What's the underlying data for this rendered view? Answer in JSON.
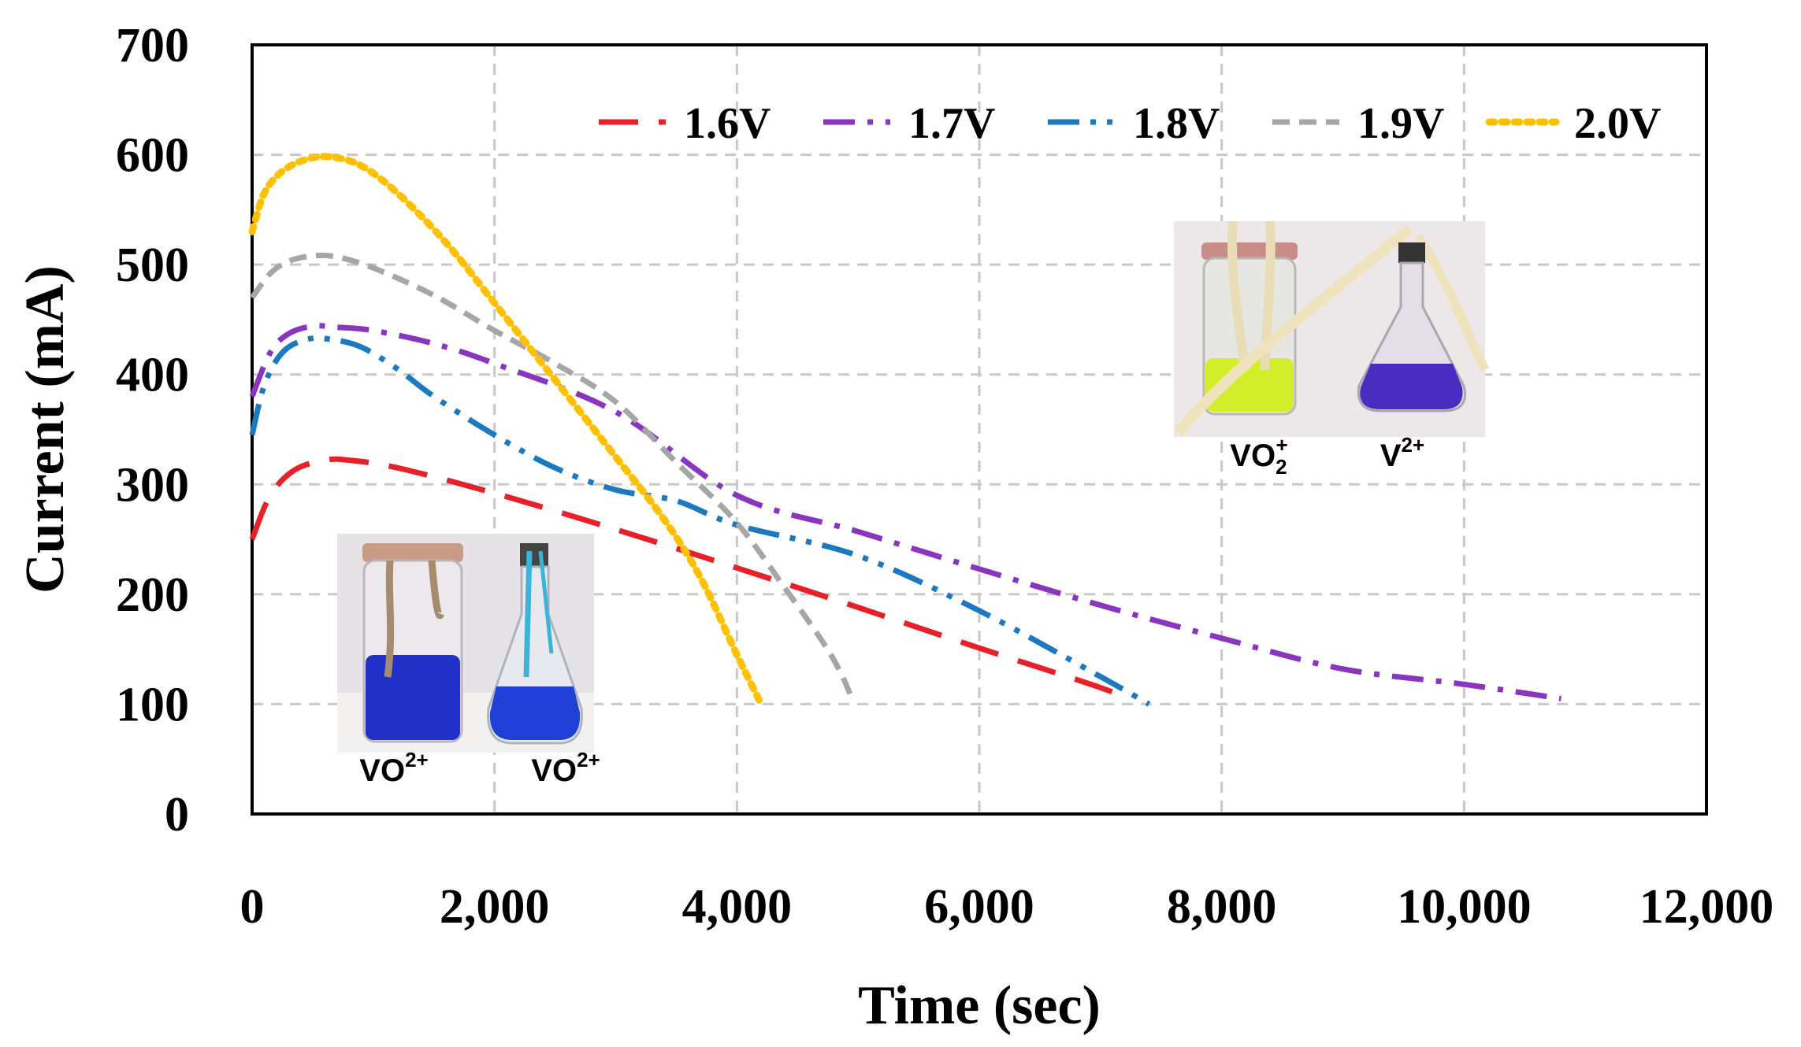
{
  "chart_data": {
    "type": "line",
    "title": "",
    "xlabel": "Time (sec)",
    "ylabel": "Current (mA)",
    "xlim": [
      0,
      12000
    ],
    "ylim": [
      0,
      700
    ],
    "x_ticks": [
      0,
      2000,
      4000,
      6000,
      8000,
      10000,
      12000
    ],
    "x_tick_labels": [
      "0",
      "2,000",
      "4,000",
      "6,000",
      "8,000",
      "10,000",
      "12,000"
    ],
    "y_ticks": [
      0,
      100,
      200,
      300,
      400,
      500,
      600,
      700
    ],
    "y_tick_labels": [
      "0",
      "100",
      "200",
      "300",
      "400",
      "500",
      "600",
      "700"
    ],
    "grid": true,
    "legend_position": "top-right",
    "series": [
      {
        "name": "1.6V",
        "color": "#e8202a",
        "dash": "long-dash",
        "x": [
          0,
          150,
          350,
          600,
          800,
          1200,
          2000,
          3000,
          4000,
          5000,
          6000,
          7000,
          7200
        ],
        "y": [
          250,
          290,
          313,
          322,
          322,
          315,
          292,
          259,
          224,
          188,
          151,
          115,
          105
        ]
      },
      {
        "name": "1.7V",
        "color": "#8a35c0",
        "dash": "dash-dot",
        "x": [
          0,
          150,
          300,
          500,
          700,
          1000,
          1500,
          2000,
          3000,
          4000,
          5000,
          6000,
          7000,
          8000,
          9000,
          10000,
          10800
        ],
        "y": [
          380,
          420,
          437,
          444,
          443,
          440,
          428,
          410,
          366,
          290,
          257,
          223,
          190,
          160,
          132,
          118,
          105
        ]
      },
      {
        "name": "1.8V",
        "color": "#1a79c0",
        "dash": "dash-dot-dot",
        "x": [
          0,
          100,
          250,
          450,
          650,
          900,
          1200,
          1500,
          2000,
          2500,
          3000,
          3500,
          4000,
          5000,
          6000,
          7000,
          7400
        ],
        "y": [
          345,
          390,
          420,
          432,
          432,
          425,
          405,
          380,
          345,
          315,
          295,
          285,
          263,
          235,
          185,
          125,
          100
        ]
      },
      {
        "name": "1.9V",
        "color": "#a6a6a6",
        "dash": "short-dash",
        "x": [
          0,
          150,
          300,
          500,
          700,
          1000,
          1500,
          2000,
          2500,
          3000,
          3500,
          4000,
          4400,
          4700,
          4850,
          4950
        ],
        "y": [
          470,
          492,
          503,
          508,
          507,
          497,
          472,
          440,
          410,
          375,
          320,
          265,
          205,
          158,
          130,
          105
        ]
      },
      {
        "name": "2.0V",
        "color": "#ffc000",
        "dash": "dotted",
        "x": [
          0,
          100,
          250,
          450,
          650,
          900,
          1200,
          1600,
          2000,
          2500,
          3000,
          3400,
          3700,
          4000,
          4200
        ],
        "y": [
          530,
          565,
          585,
          596,
          598,
          590,
          565,
          520,
          465,
          395,
          325,
          268,
          215,
          145,
          100
        ]
      }
    ]
  },
  "insets": [
    {
      "name": "vanadium-initial-photo",
      "labels": [
        {
          "base": "VO",
          "sup": "2+"
        },
        {
          "base": "VO",
          "sup": "2+"
        }
      ]
    },
    {
      "name": "vanadium-charged-photo",
      "labels": [
        {
          "base": "VO",
          "sub": "2",
          "sup": "+"
        },
        {
          "base": "V",
          "sup": "2+"
        }
      ]
    }
  ]
}
